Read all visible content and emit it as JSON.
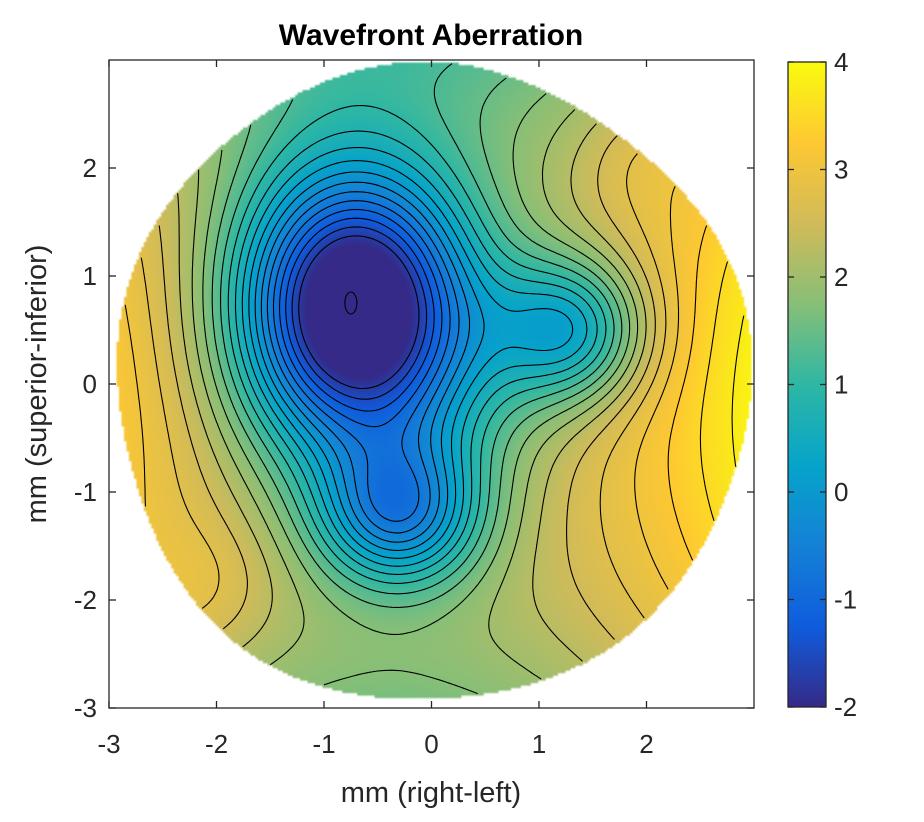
{
  "chart_data": {
    "type": "contour",
    "title": "Wavefront Aberration",
    "xlabel": "mm (right-left)",
    "ylabel": "mm (superior-inferior)",
    "xlim": [
      -3,
      3
    ],
    "ylim": [
      -3,
      3
    ],
    "xticks": [
      "-3",
      "-2",
      "-1",
      "0",
      "1",
      "2"
    ],
    "yticks": [
      "-3",
      "-2",
      "-1",
      "0",
      "1",
      "2"
    ],
    "colorbar": {
      "limits": [
        -2,
        4
      ],
      "ticks": [
        "-2",
        "-1",
        "0",
        "1",
        "2",
        "3",
        "4"
      ],
      "colormap": "parula",
      "colors": [
        "#352a87",
        "#0f5cdd",
        "#1481d6",
        "#06a4ca",
        "#2eb7a4",
        "#87bf77",
        "#d1bb59",
        "#fec832",
        "#f9fb0e"
      ]
    },
    "aperture_radius_mm": 2.95,
    "contour_step": 0.25,
    "surface": {
      "minimum": {
        "x": -0.75,
        "y": 0.75,
        "value": -1.95
      },
      "lobe_right": {
        "x": 1.3,
        "y": 0.5
      },
      "lobe_lower": {
        "x": -0.3,
        "y": -1.2
      },
      "edge_value_range": [
        2.0,
        3.3
      ]
    }
  }
}
